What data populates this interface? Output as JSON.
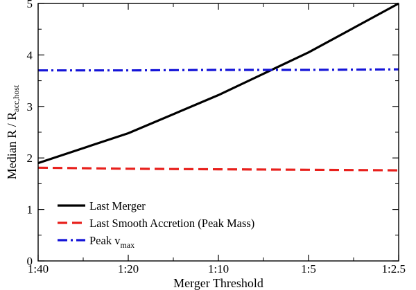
{
  "chart_data": {
    "type": "line",
    "title": "",
    "xlabel": "Merger Threshold",
    "ylabel_main": "Median R / R",
    "ylabel_sub": "acc,host",
    "categories": [
      "1:40",
      "1:20",
      "1:10",
      "1:5",
      "1:2.5"
    ],
    "x": [
      0,
      1,
      2,
      3,
      4
    ],
    "xlim": [
      0,
      4
    ],
    "ylim": [
      0,
      5
    ],
    "yticks": [
      0,
      1,
      2,
      3,
      4,
      5
    ],
    "ytick_labels": [
      "0",
      "1",
      "2",
      "3",
      "4",
      "5"
    ],
    "grid": false,
    "legend_position": "bottom-left",
    "series": [
      {
        "name": "Last Merger",
        "label_main": "Last Merger",
        "label_sub": "",
        "color": "#000000",
        "style": "solid",
        "x": [
          0,
          1,
          2,
          3,
          4
        ],
        "values": [
          1.9,
          2.48,
          3.22,
          4.05,
          5.0
        ]
      },
      {
        "name": "Last Smooth Accretion (Peak Mass)",
        "label_main": "Last Smooth Accretion (Peak Mass)",
        "label_sub": "",
        "color": "#e8201c",
        "style": "dashed",
        "x": [
          0,
          1,
          2,
          3,
          4
        ],
        "values": [
          1.81,
          1.79,
          1.78,
          1.77,
          1.76
        ]
      },
      {
        "name": "Peak vmax",
        "label_main": "Peak v",
        "label_sub": "max",
        "color": "#1515d8",
        "style": "dashdot",
        "x": [
          0,
          1,
          2,
          3,
          4
        ],
        "values": [
          3.7,
          3.7,
          3.71,
          3.71,
          3.72
        ]
      }
    ]
  }
}
